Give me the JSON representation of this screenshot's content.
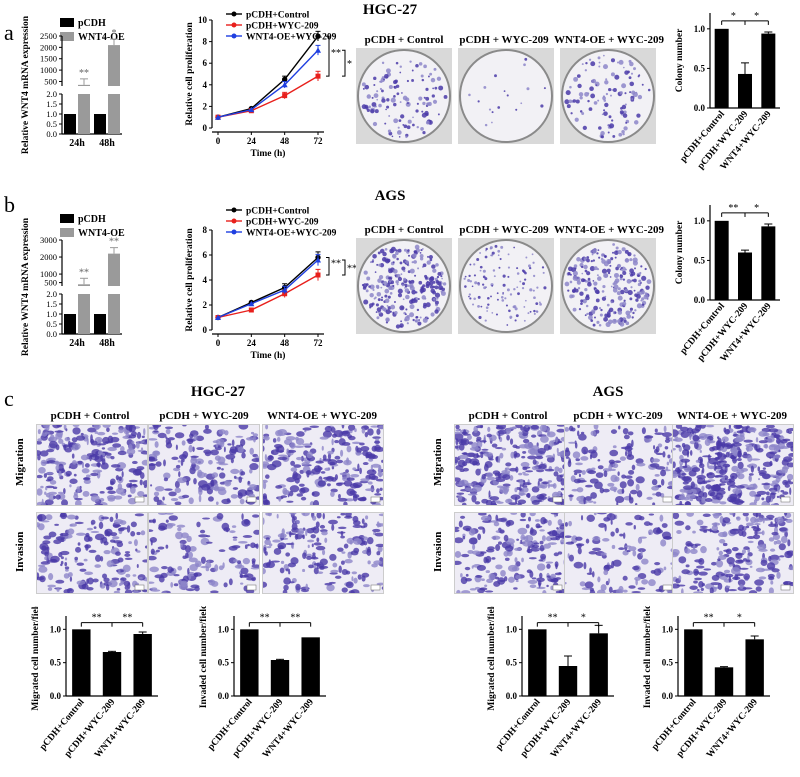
{
  "panels": {
    "a": {
      "label": "a",
      "title": "HGC-27"
    },
    "b": {
      "label": "b",
      "title": "AGS"
    },
    "c": {
      "label": "c",
      "left_title": "HGC-27",
      "right_title": "AGS"
    }
  },
  "colony_headers": {
    "a": [
      "pCDH + Control",
      "pCDH + WYC-209",
      "WNT4-OE + WYC-209"
    ],
    "b": [
      "pCDH + Control",
      "pCDH + WYC-209",
      "WNT4-OE + WYC-209"
    ]
  },
  "transwell_headers": [
    "pCDH + Control",
    "pCDH + WYC-209",
    "WNT4-OE + WYC-209"
  ],
  "transwell_rows": [
    "Migration",
    "Invasion"
  ],
  "colors": {
    "black": "#000000",
    "gray": "#9a9a9a",
    "red": "#e8201c",
    "blue": "#1f3fe0",
    "stain": "#4a3aa8",
    "stain_light": "#8d86c9"
  },
  "chart_data": [
    {
      "id": "a-mrna",
      "type": "bar",
      "ylabel": "Relative WNT4 mRNA expression",
      "categories": [
        "24h",
        "48h"
      ],
      "series": [
        {
          "name": "pCDH",
          "values": [
            1,
            1
          ]
        },
        {
          "name": "WNT4-OE",
          "values": [
            350,
            2100
          ]
        }
      ],
      "yticks_upper": [
        "500",
        "1000",
        "1500",
        "2000",
        "2500"
      ],
      "yticks_lower": [
        "0.0",
        "0.5",
        "1.0",
        "1.5",
        "2.0"
      ],
      "significance": [
        "**",
        "*"
      ]
    },
    {
      "id": "a-prolif",
      "type": "line",
      "xlabel": "Time (h)",
      "ylabel": "Relative cell proliferation",
      "x": [
        0,
        24,
        48,
        72
      ],
      "ylim": [
        0,
        10
      ],
      "xticks": [
        "0",
        "24",
        "48",
        "72"
      ],
      "yticks": [
        "0",
        "2",
        "4",
        "6",
        "8",
        "10"
      ],
      "series": [
        {
          "name": "pCDH+Control",
          "values": [
            1,
            1.8,
            4.5,
            8.5
          ]
        },
        {
          "name": "pCDH+WYC-209",
          "values": [
            1,
            1.6,
            3.0,
            4.8
          ]
        },
        {
          "name": "WNT4-OE+WYC-209",
          "values": [
            1,
            1.7,
            4.0,
            7.2
          ]
        }
      ],
      "significance": [
        "**",
        "*"
      ]
    },
    {
      "id": "a-colony",
      "type": "bar",
      "ylabel": "Colony number",
      "categories": [
        "pCDH+Control",
        "pCDH+WYC-209",
        "WNT4+WYC-209"
      ],
      "values": [
        1.0,
        0.43,
        0.94
      ],
      "errors": [
        0,
        0.14,
        0.02
      ],
      "ylim": [
        0,
        1.2
      ],
      "yticks": [
        "0.0",
        "0.5",
        "1.0"
      ],
      "significance": [
        "*",
        "*"
      ]
    },
    {
      "id": "b-mrna",
      "type": "bar",
      "ylabel": "Relative WNT4 mRNA expression",
      "categories": [
        "24h",
        "48h"
      ],
      "series": [
        {
          "name": "pCDH",
          "values": [
            1,
            1
          ]
        },
        {
          "name": "WNT4-OE",
          "values": [
            400,
            2200
          ]
        }
      ],
      "yticks_upper": [
        "500",
        "1000",
        "2000",
        "3000"
      ],
      "yticks_lower": [
        "0.0",
        "0.5",
        "1.0",
        "1.5",
        "2.0"
      ],
      "significance": [
        "**",
        "**"
      ]
    },
    {
      "id": "b-prolif",
      "type": "line",
      "xlabel": "Time (h)",
      "ylabel": "Relative cell proliferation",
      "x": [
        0,
        24,
        48,
        72
      ],
      "ylim": [
        0,
        8
      ],
      "xticks": [
        "0",
        "24",
        "48",
        "72"
      ],
      "yticks": [
        "0",
        "2",
        "4",
        "6",
        "8"
      ],
      "series": [
        {
          "name": "pCDH+Control",
          "values": [
            1,
            2.2,
            3.4,
            5.8
          ]
        },
        {
          "name": "pCDH+WYC-209",
          "values": [
            1,
            1.6,
            2.9,
            4.4
          ]
        },
        {
          "name": "WNT4-OE+WYC-209",
          "values": [
            1,
            2.1,
            3.2,
            5.6
          ]
        }
      ],
      "significance": [
        "**",
        "**"
      ]
    },
    {
      "id": "b-colony",
      "type": "bar",
      "ylabel": "Colony number",
      "categories": [
        "pCDH+Control",
        "pCDH+WYC-209",
        "WNT4+WYC-209"
      ],
      "values": [
        1.0,
        0.6,
        0.93
      ],
      "errors": [
        0,
        0.03,
        0.03
      ],
      "ylim": [
        0,
        1.2
      ],
      "yticks": [
        "0.0",
        "0.5",
        "1.0"
      ],
      "significance": [
        "**",
        "*"
      ]
    },
    {
      "id": "c-hgc-mig",
      "type": "bar",
      "ylabel": "Migrated cell number/field",
      "categories": [
        "pCDH+Control",
        "pCDH+WYC-209",
        "WNT4+WYC-209"
      ],
      "values": [
        1.0,
        0.66,
        0.93
      ],
      "errors": [
        0,
        0.01,
        0.03
      ],
      "ylim": [
        0,
        1.2
      ],
      "yticks": [
        "0.0",
        "0.5",
        "1.0"
      ],
      "significance": [
        "**",
        "**"
      ]
    },
    {
      "id": "c-hgc-inv",
      "type": "bar",
      "ylabel": "Invaded cell number/field",
      "categories": [
        "pCDH+Control",
        "pCDH+WYC-209",
        "WNT4+WYC-209"
      ],
      "values": [
        1.0,
        0.54,
        0.88
      ],
      "errors": [
        0,
        0.01,
        0
      ],
      "ylim": [
        0,
        1.2
      ],
      "yticks": [
        "0.0",
        "0.5",
        "1.0"
      ],
      "significance": [
        "**",
        "**"
      ]
    },
    {
      "id": "c-ags-mig",
      "type": "bar",
      "ylabel": "Migrated cell number/field",
      "categories": [
        "pCDH+Control",
        "pCDH+WYC-209",
        "WNT4+WYC-209"
      ],
      "values": [
        1.0,
        0.45,
        0.94
      ],
      "errors": [
        0,
        0.15,
        0.12
      ],
      "ylim": [
        0,
        1.2
      ],
      "yticks": [
        "0.0",
        "0.5",
        "1.0"
      ],
      "significance": [
        "**",
        "*"
      ]
    },
    {
      "id": "c-ags-inv",
      "type": "bar",
      "ylabel": "Invaded cell number/field",
      "categories": [
        "pCDH+Control",
        "pCDH+WYC-209",
        "WNT4+WYC-209"
      ],
      "values": [
        1.0,
        0.43,
        0.85
      ],
      "errors": [
        0,
        0.01,
        0.05
      ],
      "ylim": [
        0,
        1.2
      ],
      "yticks": [
        "0.0",
        "0.5",
        "1.0"
      ],
      "significance": [
        "**",
        "*"
      ]
    }
  ]
}
